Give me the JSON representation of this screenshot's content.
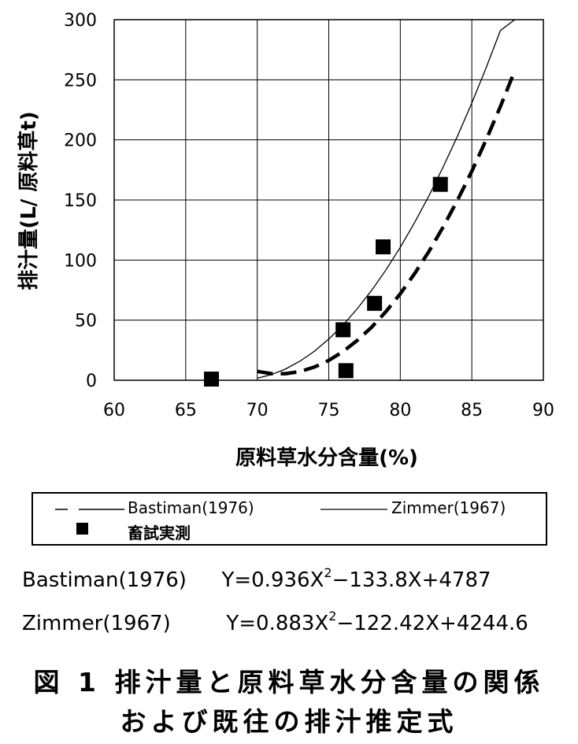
{
  "chart_data": {
    "type": "scatter",
    "xlabel": "原料草水分含量(%)",
    "ylabel": "排汁量(L/ 原料草t)",
    "xlim": [
      60,
      90
    ],
    "ylim": [
      0,
      300
    ],
    "x_ticks": [
      "60",
      "65",
      "70",
      "75",
      "80",
      "85",
      "90"
    ],
    "y_ticks": [
      "0",
      "50",
      "100",
      "150",
      "200",
      "250",
      "300"
    ],
    "grid": true,
    "series": [
      {
        "name": "Bastiman(1976)",
        "kind": "line",
        "style": "dashed",
        "x": [
          70,
          71,
          72,
          73,
          74,
          75,
          76,
          77,
          78,
          79,
          80,
          81,
          82,
          83,
          84,
          85,
          86,
          87,
          88
        ],
        "y": [
          7.4,
          5.5,
          5.5,
          7.3,
          11.0,
          16.5,
          23.9,
          33.2,
          44.2,
          57.2,
          72.0,
          88.7,
          107.2,
          127.6,
          149.9,
          174.0,
          200.0,
          227.8,
          257.6
        ]
      },
      {
        "name": "Zimmer(1967)",
        "kind": "line",
        "style": "solid",
        "x": [
          70,
          71,
          72,
          73,
          74,
          75,
          76,
          77,
          78,
          79,
          80,
          81,
          82,
          83,
          84,
          85,
          86,
          87,
          88
        ],
        "y": [
          1.7,
          4.7,
          9.5,
          16.0,
          24.2,
          34.3,
          46.0,
          59.6,
          74.9,
          91.9,
          110.6,
          131.2,
          153.4,
          177.5,
          203.2,
          230.7,
          260.0,
          291.0,
          300
        ]
      },
      {
        "name": "畜試実測",
        "kind": "scatter",
        "marker": "square",
        "x": [
          66.8,
          76.0,
          76.2,
          78.2,
          78.8,
          82.8
        ],
        "y": [
          1,
          42,
          8,
          64,
          111,
          163
        ]
      }
    ],
    "legend_position": "bottom"
  },
  "equations": [
    {
      "label": "Bastiman(1976)",
      "lhs": "Y=0.936X",
      "sup": "2",
      "rhs": "−133.8X+4787"
    },
    {
      "label": "Zimmer(1967)",
      "lhs": "Y=0.883X",
      "sup": "2",
      "rhs": "−122.42X+4244.6"
    }
  ],
  "caption": {
    "line1": "図 1 排汁量と原料草水分含量の関係",
    "line2": "および既往の排汁推定式"
  },
  "colors": {
    "ink": "#000000",
    "grid": "#000000",
    "background": "#ffffff"
  }
}
